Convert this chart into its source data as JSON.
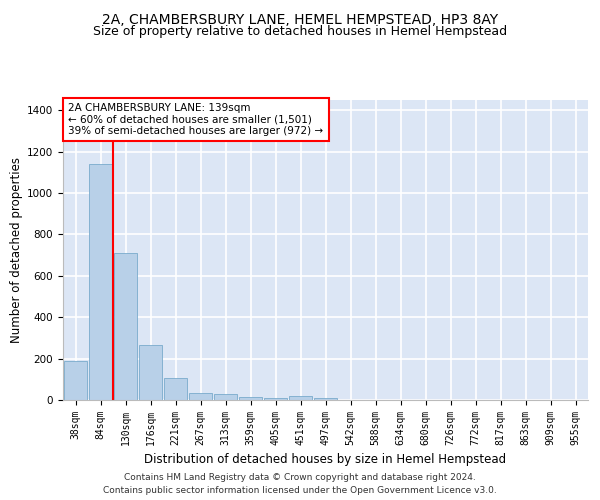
{
  "title": "2A, CHAMBERSBURY LANE, HEMEL HEMPSTEAD, HP3 8AY",
  "subtitle": "Size of property relative to detached houses in Hemel Hempstead",
  "xlabel": "Distribution of detached houses by size in Hemel Hempstead",
  "ylabel": "Number of detached properties",
  "footer_line1": "Contains HM Land Registry data © Crown copyright and database right 2024.",
  "footer_line2": "Contains public sector information licensed under the Open Government Licence v3.0.",
  "annotation_line1": "2A CHAMBERSBURY LANE: 139sqm",
  "annotation_line2": "← 60% of detached houses are smaller (1,501)",
  "annotation_line3": "39% of semi-detached houses are larger (972) →",
  "bin_labels": [
    "38sqm",
    "84sqm",
    "130sqm",
    "176sqm",
    "221sqm",
    "267sqm",
    "313sqm",
    "359sqm",
    "405sqm",
    "451sqm",
    "497sqm",
    "542sqm",
    "588sqm",
    "634sqm",
    "680sqm",
    "726sqm",
    "772sqm",
    "817sqm",
    "863sqm",
    "909sqm",
    "955sqm"
  ],
  "bar_heights": [
    190,
    1140,
    710,
    265,
    107,
    35,
    28,
    15,
    12,
    18,
    12,
    0,
    0,
    0,
    0,
    0,
    0,
    0,
    0,
    0,
    0
  ],
  "bar_color": "#b8d0e8",
  "bar_edge_color": "#7aaBcc",
  "redline_x": 1.5,
  "ylim": [
    0,
    1450
  ],
  "yticks": [
    0,
    200,
    400,
    600,
    800,
    1000,
    1200,
    1400
  ],
  "background_color": "#dce6f5",
  "grid_color": "#ffffff",
  "title_fontsize": 10,
  "subtitle_fontsize": 9,
  "axis_label_fontsize": 8.5,
  "tick_fontsize": 7,
  "annotation_fontsize": 7.5,
  "footer_fontsize": 6.5
}
